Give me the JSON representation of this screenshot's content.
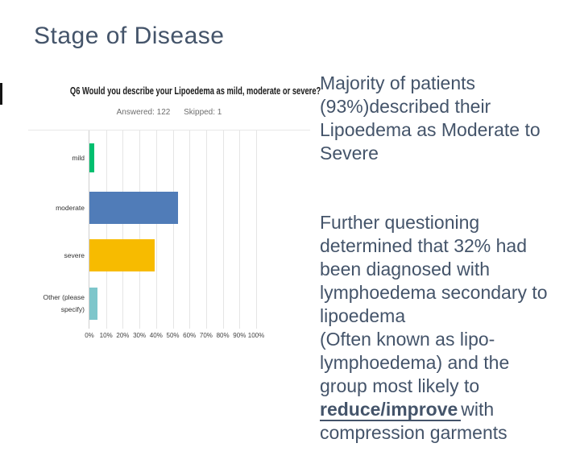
{
  "slide": {
    "title": "Stage of Disease",
    "background_color": "#ffffff",
    "title_color": "#44546A",
    "body_text_color": "#44546A"
  },
  "chart": {
    "question": "Q6 Would you describe your Lipoedema as mild, moderate or severe?",
    "answered_label": "Answered: 122",
    "skipped_label": "Skipped: 1"
  },
  "chart_data": {
    "type": "bar",
    "orientation": "horizontal",
    "title": "Q6 Would you describe your Lipoedema as mild, moderate or severe?",
    "subtitle": "Answered: 122  Skipped: 1",
    "categories": [
      "mild",
      "moderate",
      "severe",
      "Other (please specify)"
    ],
    "values": [
      3,
      53,
      39,
      5
    ],
    "unit": "%",
    "bar_colors": [
      "#00BF6F",
      "#507CB8",
      "#F7BB00",
      "#7EC6CB"
    ],
    "x_ticks": [
      "0%",
      "10%",
      "20%",
      "30%",
      "40%",
      "50%",
      "60%",
      "70%",
      "80%",
      "90%",
      "100%"
    ],
    "xlim": [
      0,
      100
    ],
    "grid": true,
    "legend": false
  },
  "notes": {
    "para1": "Majority of patients\n(93%)described their\nLipoedema as Moderate to\nSevere",
    "para2_start": "Further questioning\ndetermined that 32% had\nbeen diagnosed with\nlymphoedema secondary to\nlipoedema\n(Often known as lipo-\nlymphoedema) and the\ngroup most likely to\n",
    "para2_emphasis": "reduce/improve",
    "para2_end": "with\ncompression garments"
  }
}
